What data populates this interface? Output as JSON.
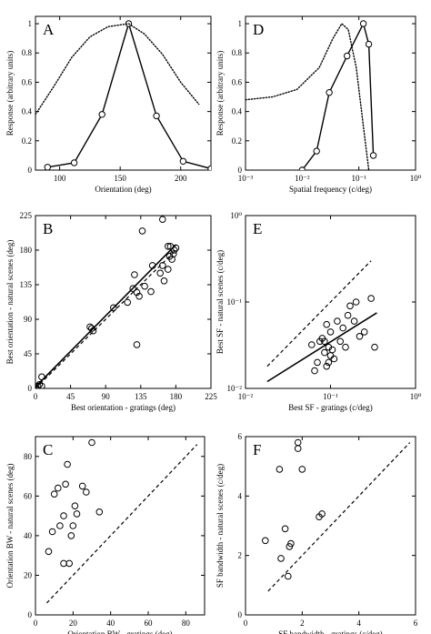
{
  "chart_data": [
    {
      "panel_id": "A",
      "type": "line",
      "xlabel": "Orientation (deg)",
      "ylabel": "Response (arbitrary units)",
      "xlim": [
        80,
        225
      ],
      "ylim": [
        0,
        1.05
      ],
      "xscale": "linear",
      "yscale": "linear",
      "xticks": [
        100,
        150,
        200
      ],
      "xtick_labels": [
        "100",
        "150",
        "200"
      ],
      "yticks": [
        0,
        0.2,
        0.4,
        0.6,
        0.8,
        1
      ],
      "ytick_labels": [
        "0",
        "0.2",
        "0.4",
        "0.6",
        "0.8",
        "1"
      ],
      "series": [
        {
          "style": "solid-markers",
          "x": [
            90,
            112,
            135,
            157,
            180,
            202,
            225
          ],
          "y": [
            0.02,
            0.05,
            0.38,
            1.0,
            0.37,
            0.06,
            0.01
          ]
        },
        {
          "style": "dotted",
          "x": [
            80,
            95,
            110,
            125,
            140,
            157,
            170,
            185,
            200,
            215
          ],
          "y": [
            0.38,
            0.57,
            0.77,
            0.91,
            0.98,
            1.0,
            0.93,
            0.79,
            0.6,
            0.45
          ]
        }
      ]
    },
    {
      "panel_id": "D",
      "type": "line",
      "xlabel": "Spatial frequency (c/deg)",
      "ylabel": "Response (arbitrary units)",
      "xlim": [
        0.001,
        1
      ],
      "ylim": [
        0,
        1.05
      ],
      "xscale": "log",
      "yscale": "linear",
      "xticks": [
        0.001,
        0.01,
        0.1,
        1
      ],
      "xtick_labels": [
        "10⁻³",
        "10⁻²",
        "10⁻¹",
        "10⁰"
      ],
      "yticks": [
        0,
        0.2,
        0.4,
        0.6,
        0.8,
        1
      ],
      "ytick_labels": [
        "0",
        "0.2",
        "0.4",
        "0.6",
        "0.8",
        "1"
      ],
      "series": [
        {
          "style": "solid-markers",
          "x": [
            0.01,
            0.018,
            0.03,
            0.062,
            0.12,
            0.15,
            0.18
          ],
          "y": [
            0.0,
            0.13,
            0.53,
            0.78,
            1.0,
            0.86,
            0.1
          ]
        },
        {
          "style": "dotted",
          "x": [
            0.001,
            0.003,
            0.008,
            0.02,
            0.035,
            0.05,
            0.065,
            0.09,
            0.12,
            0.15
          ],
          "y": [
            0.48,
            0.5,
            0.55,
            0.7,
            0.9,
            1.0,
            0.96,
            0.7,
            0.3,
            0.0
          ]
        }
      ]
    },
    {
      "panel_id": "B",
      "type": "scatter",
      "xlabel": "Best orientation - gratings (deg)",
      "ylabel": "Best orientation - natural scenes (deg)",
      "xlim": [
        0,
        225
      ],
      "ylim": [
        0,
        225
      ],
      "xscale": "linear",
      "yscale": "linear",
      "xticks": [
        0,
        45,
        90,
        135,
        180,
        225
      ],
      "xtick_labels": [
        "0",
        "45",
        "90",
        "135",
        "180",
        "225"
      ],
      "yticks": [
        0,
        45,
        90,
        135,
        180,
        225
      ],
      "ytick_labels": [
        "0",
        "45",
        "90",
        "135",
        "180",
        "225"
      ],
      "points": {
        "x": [
          3,
          5,
          8,
          8,
          70,
          72,
          74,
          100,
          118,
          125,
          127,
          130,
          130,
          133,
          137,
          140,
          148,
          160,
          163,
          165,
          170,
          172,
          173,
          175,
          177,
          178,
          180,
          163,
          170,
          150
        ],
        "y": [
          3,
          5,
          15,
          3,
          80,
          78,
          75,
          105,
          112,
          130,
          148,
          125,
          57,
          120,
          205,
          133,
          126,
          150,
          220,
          140,
          185,
          172,
          185,
          168,
          175,
          180,
          183,
          160,
          155,
          160
        ]
      },
      "lines": [
        {
          "style": "solid",
          "x": [
            0,
            180
          ],
          "y": [
            2,
            187
          ]
        },
        {
          "style": "dashed",
          "x": [
            0,
            180
          ],
          "y": [
            0,
            180
          ]
        }
      ]
    },
    {
      "panel_id": "E",
      "type": "scatter",
      "xlabel": "Best SF - gratings (c/deg)",
      "ylabel": "Best SF - natural scenes (c/deg)",
      "xlim": [
        0.01,
        1
      ],
      "ylim": [
        0.01,
        1
      ],
      "xscale": "log",
      "yscale": "log",
      "xticks": [
        0.01,
        0.1,
        1
      ],
      "xtick_labels": [
        "10⁻²",
        "10⁻¹",
        "10⁰"
      ],
      "yticks": [
        0.01,
        0.1,
        1
      ],
      "ytick_labels": [
        "10⁻²",
        "10⁻¹",
        "10⁰"
      ],
      "points": {
        "x": [
          0.06,
          0.065,
          0.07,
          0.075,
          0.08,
          0.085,
          0.09,
          0.09,
          0.095,
          0.1,
          0.1,
          0.105,
          0.11,
          0.12,
          0.13,
          0.14,
          0.15,
          0.16,
          0.17,
          0.19,
          0.2,
          0.22,
          0.25,
          0.3,
          0.33,
          0.085,
          0.095
        ],
        "y": [
          0.032,
          0.016,
          0.02,
          0.035,
          0.038,
          0.026,
          0.055,
          0.018,
          0.03,
          0.024,
          0.045,
          0.028,
          0.022,
          0.06,
          0.035,
          0.05,
          0.03,
          0.07,
          0.09,
          0.06,
          0.1,
          0.04,
          0.045,
          0.11,
          0.03,
          0.035,
          0.02
        ]
      },
      "lines": [
        {
          "style": "solid",
          "x": [
            0.018,
            0.35
          ],
          "y": [
            0.012,
            0.075
          ]
        },
        {
          "style": "dashed",
          "x": [
            0.018,
            0.3
          ],
          "y": [
            0.018,
            0.3
          ]
        }
      ]
    },
    {
      "panel_id": "C",
      "type": "scatter",
      "xlabel": "Orientation BW - gratings (deg)",
      "ylabel": "Orientation BW - natural scenes (deg)",
      "xlim": [
        0,
        90
      ],
      "ylim": [
        0,
        90
      ],
      "xscale": "linear",
      "yscale": "linear",
      "xticks": [
        0,
        20,
        40,
        60,
        80
      ],
      "xtick_labels": [
        "0",
        "20",
        "40",
        "60",
        "80"
      ],
      "yticks": [
        0,
        20,
        40,
        60,
        80
      ],
      "ytick_labels": [
        "0",
        "20",
        "40",
        "60",
        "80"
      ],
      "points": {
        "x": [
          7,
          9,
          10,
          12,
          13,
          15,
          15,
          16,
          17,
          18,
          19,
          20,
          21,
          22,
          25,
          27,
          30,
          34
        ],
        "y": [
          32,
          42,
          61,
          64,
          45,
          26,
          50,
          66,
          76,
          26,
          40,
          45,
          55,
          51,
          65,
          62,
          87,
          52
        ]
      },
      "lines": [
        {
          "style": "dashed",
          "x": [
            6,
            86
          ],
          "y": [
            6,
            86
          ]
        }
      ]
    },
    {
      "panel_id": "F",
      "type": "scatter",
      "xlabel": "SF bandwidth - gratings (c/deg)",
      "ylabel": "SF bandwidth - natural scenes (c/deg)",
      "xlim": [
        0,
        6
      ],
      "ylim": [
        0,
        6
      ],
      "xscale": "linear",
      "yscale": "linear",
      "xticks": [
        0,
        2,
        4,
        6
      ],
      "xtick_labels": [
        "0",
        "2",
        "4",
        "6"
      ],
      "yticks": [
        0,
        2,
        4,
        6
      ],
      "ytick_labels": [
        "0",
        "2",
        "4",
        "6"
      ],
      "points": {
        "x": [
          0.7,
          1.2,
          1.25,
          1.4,
          1.5,
          1.55,
          1.6,
          1.85,
          1.85,
          2.0,
          2.6,
          2.7
        ],
        "y": [
          2.5,
          4.9,
          1.9,
          2.9,
          1.3,
          2.3,
          2.4,
          5.8,
          5.6,
          4.9,
          3.3,
          3.4
        ]
      },
      "lines": [
        {
          "style": "dashed",
          "x": [
            0.8,
            5.8
          ],
          "y": [
            0.8,
            5.8
          ]
        }
      ]
    }
  ]
}
